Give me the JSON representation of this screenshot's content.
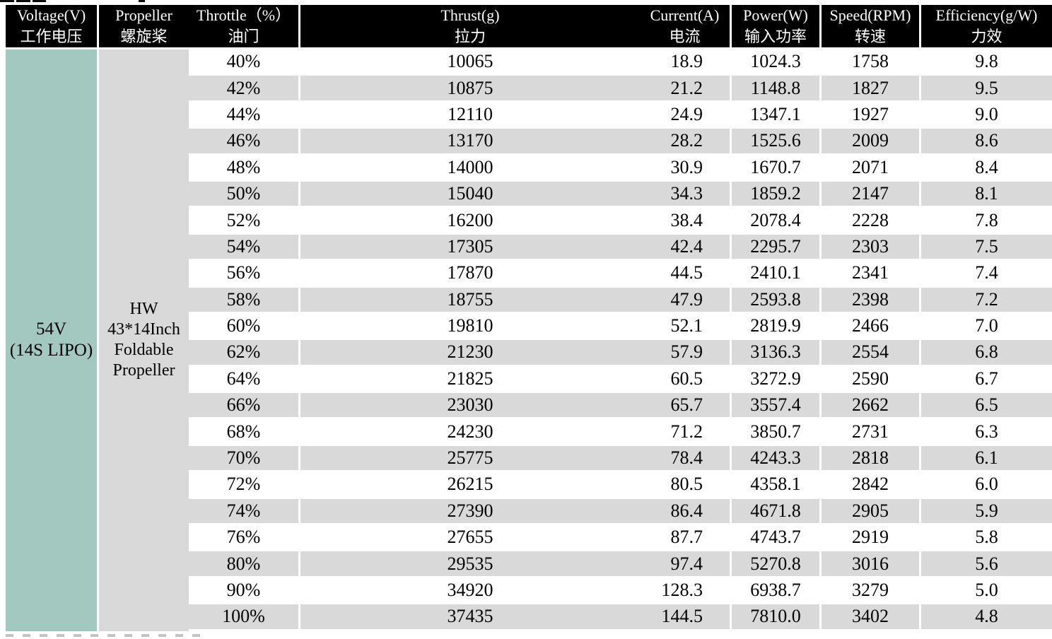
{
  "table": {
    "columns": [
      {
        "en": "Voltage(V)",
        "zh": "工作电压"
      },
      {
        "en": "Propeller",
        "zh": "螺旋桨"
      },
      {
        "en": "Throttle（%）",
        "zh": "油门"
      },
      {
        "en": "Thrust(g)",
        "zh": "拉力"
      },
      {
        "en": "Current(A)",
        "zh": "电流"
      },
      {
        "en": "Power(W)",
        "zh": "输入功率"
      },
      {
        "en": "Speed(RPM)",
        "zh": "转速"
      },
      {
        "en": "Efficiency(g/W)",
        "zh": "力效"
      }
    ],
    "voltage_cell": {
      "line1": "54V",
      "line2": "(14S LIPO)"
    },
    "propeller_cell": {
      "lines": [
        "HW",
        "43*14Inch",
        "Foldable",
        "Propeller"
      ]
    },
    "rows": [
      {
        "throttle": "40%",
        "thrust": "10065",
        "current": "18.9",
        "power": "1024.3",
        "speed": "1758",
        "efficiency": "9.8"
      },
      {
        "throttle": "42%",
        "thrust": "10875",
        "current": "21.2",
        "power": "1148.8",
        "speed": "1827",
        "efficiency": "9.5"
      },
      {
        "throttle": "44%",
        "thrust": "12110",
        "current": "24.9",
        "power": "1347.1",
        "speed": "1927",
        "efficiency": "9.0"
      },
      {
        "throttle": "46%",
        "thrust": "13170",
        "current": "28.2",
        "power": "1525.6",
        "speed": "2009",
        "efficiency": "8.6"
      },
      {
        "throttle": "48%",
        "thrust": "14000",
        "current": "30.9",
        "power": "1670.7",
        "speed": "2071",
        "efficiency": "8.4"
      },
      {
        "throttle": "50%",
        "thrust": "15040",
        "current": "34.3",
        "power": "1859.2",
        "speed": "2147",
        "efficiency": "8.1"
      },
      {
        "throttle": "52%",
        "thrust": "16200",
        "current": "38.4",
        "power": "2078.4",
        "speed": "2228",
        "efficiency": "7.8"
      },
      {
        "throttle": "54%",
        "thrust": "17305",
        "current": "42.4",
        "power": "2295.7",
        "speed": "2303",
        "efficiency": "7.5"
      },
      {
        "throttle": "56%",
        "thrust": "17870",
        "current": "44.5",
        "power": "2410.1",
        "speed": "2341",
        "efficiency": "7.4"
      },
      {
        "throttle": "58%",
        "thrust": "18755",
        "current": "47.9",
        "power": "2593.8",
        "speed": "2398",
        "efficiency": "7.2"
      },
      {
        "throttle": "60%",
        "thrust": "19810",
        "current": "52.1",
        "power": "2819.9",
        "speed": "2466",
        "efficiency": "7.0"
      },
      {
        "throttle": "62%",
        "thrust": "21230",
        "current": "57.9",
        "power": "3136.3",
        "speed": "2554",
        "efficiency": "6.8"
      },
      {
        "throttle": "64%",
        "thrust": "21825",
        "current": "60.5",
        "power": "3272.9",
        "speed": "2590",
        "efficiency": "6.7"
      },
      {
        "throttle": "66%",
        "thrust": "23030",
        "current": "65.7",
        "power": "3557.4",
        "speed": "2662",
        "efficiency": "6.5"
      },
      {
        "throttle": "68%",
        "thrust": "24230",
        "current": "71.2",
        "power": "3850.7",
        "speed": "2731",
        "efficiency": "6.3"
      },
      {
        "throttle": "70%",
        "thrust": "25775",
        "current": "78.4",
        "power": "4243.3",
        "speed": "2818",
        "efficiency": "6.1"
      },
      {
        "throttle": "72%",
        "thrust": "26215",
        "current": "80.5",
        "power": "4358.1",
        "speed": "2842",
        "efficiency": "6.0"
      },
      {
        "throttle": "74%",
        "thrust": "27390",
        "current": "86.4",
        "power": "4671.8",
        "speed": "2905",
        "efficiency": "5.9"
      },
      {
        "throttle": "76%",
        "thrust": "27655",
        "current": "87.7",
        "power": "4743.7",
        "speed": "2919",
        "efficiency": "5.8"
      },
      {
        "throttle": "80%",
        "thrust": "29535",
        "current": "97.4",
        "power": "5270.8",
        "speed": "3016",
        "efficiency": "5.6"
      },
      {
        "throttle": "90%",
        "thrust": "34920",
        "current": "128.3",
        "power": "6938.7",
        "speed": "3279",
        "efficiency": "5.0"
      },
      {
        "throttle": "100%",
        "thrust": "37435",
        "current": "144.5",
        "power": "7810.0",
        "speed": "3402",
        "efficiency": "4.8"
      }
    ]
  },
  "colors": {
    "header_bg": "#000000",
    "header_text": "#ffffff",
    "voltage_bg": "#a3c8c0",
    "stripe_bg": "#d9d9d9",
    "body_text": "#000000"
  }
}
